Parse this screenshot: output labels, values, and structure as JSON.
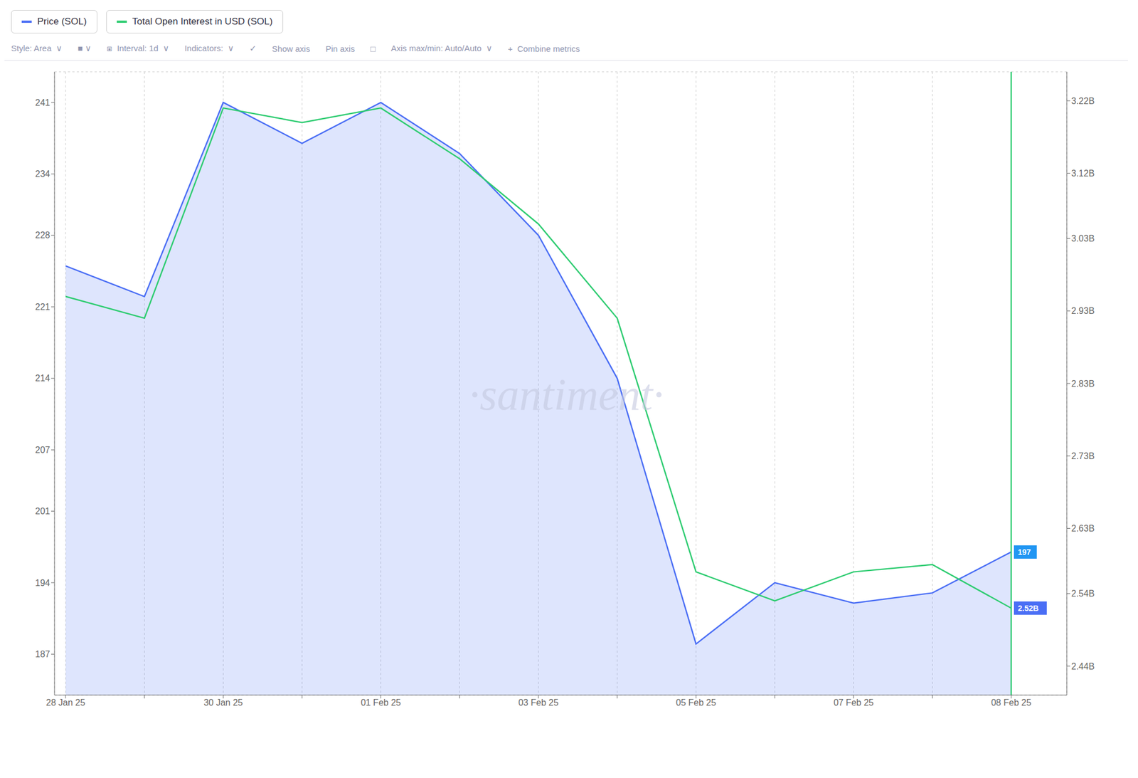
{
  "chart_data": {
    "type": "line",
    "categories": [
      "28 Jan 25",
      null,
      "30 Jan 25",
      null,
      "01 Feb 25",
      null,
      "03 Feb 25",
      null,
      "05 Feb 25",
      null,
      "07 Feb 25",
      null,
      "08 Feb 25"
    ],
    "series": [
      {
        "name": "Price (SOL)",
        "type": "area",
        "color": "#4a6ef5",
        "axis": "y",
        "values": [
          225,
          222,
          241,
          237,
          241,
          236,
          228,
          214,
          188,
          194,
          192,
          193,
          197
        ]
      },
      {
        "name": "Total Open Interest in USD (SOL)",
        "type": "line",
        "color": "#2ecc71",
        "axis": "y2",
        "values": [
          2.95,
          2.92,
          3.21,
          3.19,
          3.21,
          3.14,
          3.05,
          2.92,
          2.57,
          2.53,
          2.57,
          2.58,
          2.52
        ]
      }
    ],
    "ylim": [
      183,
      244
    ],
    "yticks": [
      187,
      194,
      201,
      207,
      214,
      221,
      228,
      234,
      241
    ],
    "y2lim": [
      2.4,
      3.26
    ],
    "y2ticks": [
      {
        "value": 2.44,
        "label": "2.44B"
      },
      {
        "value": 2.54,
        "label": "2.54B"
      },
      {
        "value": 2.63,
        "label": "2.63B"
      },
      {
        "value": 2.73,
        "label": "2.73B"
      },
      {
        "value": 2.83,
        "label": "2.83B"
      },
      {
        "value": 2.93,
        "label": "2.93B"
      },
      {
        "value": 3.03,
        "label": "3.03B"
      },
      {
        "value": 3.12,
        "label": "3.12B"
      },
      {
        "value": 3.22,
        "label": "3.22B"
      }
    ],
    "grid": true,
    "legend": "top",
    "annotations": [
      {
        "type": "vline",
        "x": "08 Feb 25",
        "color": "#2ecc71"
      },
      {
        "type": "label",
        "text": "197",
        "x": "08 Feb 25",
        "y": 197,
        "axis": "y",
        "color": "#2196f3"
      },
      {
        "type": "label",
        "text": "2.52B",
        "x": "08 Feb 25",
        "y": 2.52,
        "axis": "y2",
        "color": "#4a6ef5"
      },
      {
        "type": "watermark",
        "text": "·santiment·"
      },
      {
        "type": "toolbar",
        "text": "Style: Area  ∨"
      },
      {
        "type": "toolbar",
        "text": "■ ∨"
      },
      {
        "type": "toolbar",
        "text": "⧆  Interval: 1d  ∨"
      },
      {
        "type": "toolbar",
        "text": "Indicators:  ∨"
      },
      {
        "type": "toolbar",
        "text": "✓"
      },
      {
        "type": "toolbar",
        "text": "Show axis"
      },
      {
        "type": "toolbar",
        "text": "Pin axis"
      },
      {
        "type": "toolbar",
        "text": "□"
      },
      {
        "type": "toolbar",
        "text": "Axis max/min: Auto/Auto  ∨"
      },
      {
        "type": "toolbar",
        "text": "+  Combine metrics"
      }
    ]
  }
}
